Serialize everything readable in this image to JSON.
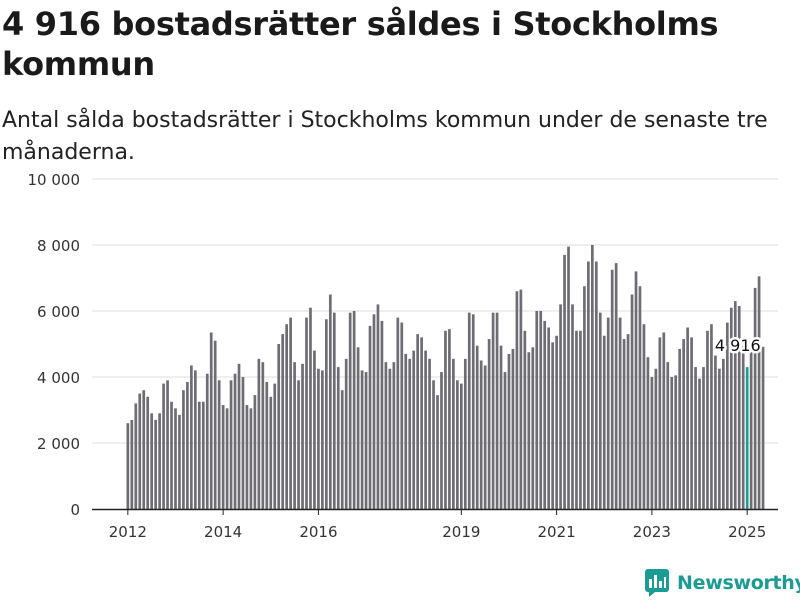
{
  "title": "4 916 bostadsrätter såldes i Stockholms kommun",
  "subtitle": "Antal sålda bostadsrätter i Stockholms kommun under de senaste tre månaderna.",
  "brand": {
    "name": "Newsworthy",
    "icon": "newsworthy-logo-icon",
    "color": "#1a9b93"
  },
  "chart_data": {
    "type": "bar",
    "ylim": [
      0,
      10000
    ],
    "y_ticks": [
      {
        "value": 0,
        "label": "0"
      },
      {
        "value": 2000,
        "label": "2 000"
      },
      {
        "value": 4000,
        "label": "4 000"
      },
      {
        "value": 6000,
        "label": "6 000"
      },
      {
        "value": 8000,
        "label": "8 000"
      },
      {
        "value": 10000,
        "label": "10 000"
      }
    ],
    "x_ticks": [
      {
        "index": 0,
        "label": "2012"
      },
      {
        "index": 24,
        "label": "2014"
      },
      {
        "index": 48,
        "label": "2016"
      },
      {
        "index": 84,
        "label": "2019"
      },
      {
        "index": 108,
        "label": "2021"
      },
      {
        "index": 132,
        "label": "2023"
      },
      {
        "index": 156,
        "label": "2025"
      }
    ],
    "bar_color": "#6e6d73",
    "highlight_color": "#1a9b93",
    "highlight_index": 156,
    "highlight_label": "4 916",
    "grid": true,
    "values": [
      2600,
      2700,
      3200,
      3500,
      3600,
      3400,
      2900,
      2700,
      2900,
      3800,
      3900,
      3250,
      3050,
      2850,
      3600,
      3850,
      4350,
      4200,
      3250,
      3250,
      4100,
      5350,
      5100,
      3900,
      3150,
      3050,
      3900,
      4100,
      4400,
      4000,
      3150,
      3050,
      3450,
      4550,
      4450,
      3850,
      3400,
      3800,
      5000,
      5300,
      5600,
      5800,
      4450,
      3900,
      4400,
      5800,
      6100,
      4800,
      4250,
      4200,
      5750,
      6500,
      5950,
      4300,
      3600,
      4550,
      5950,
      6000,
      4900,
      4200,
      4150,
      5550,
      5900,
      6200,
      5700,
      4450,
      4250,
      4450,
      5800,
      5650,
      4700,
      4550,
      4800,
      5300,
      5200,
      4800,
      4550,
      3900,
      3450,
      4150,
      5400,
      5450,
      4550,
      3900,
      3800,
      4550,
      5950,
      5900,
      4950,
      4500,
      4350,
      5150,
      5950,
      5950,
      4950,
      4150,
      4700,
      4850,
      6600,
      6650,
      5400,
      4750,
      4900,
      6000,
      6000,
      5700,
      5500,
      5050,
      5250,
      6200,
      7700,
      7950,
      6200,
      5400,
      5400,
      6750,
      7500,
      8000,
      7500,
      5950,
      5250,
      5800,
      7250,
      7450,
      5800,
      5150,
      5300,
      6500,
      7200,
      6750,
      5600,
      4600,
      4000,
      4250,
      5200,
      5350,
      4450,
      4000,
      4050,
      4850,
      5150,
      5500,
      5200,
      4300,
      3950,
      4300,
      5400,
      5600,
      4650,
      4250,
      4550,
      5650,
      6100,
      6300,
      6150,
      4950,
      4300,
      4900,
      6700,
      7050,
      4916
    ]
  }
}
